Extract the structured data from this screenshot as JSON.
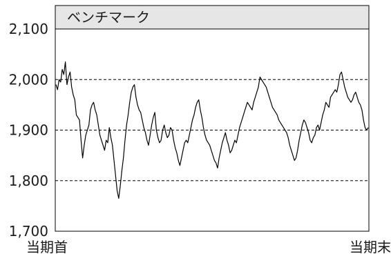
{
  "chart_data": {
    "type": "line",
    "title": "ベンチマーク",
    "xlabel": "",
    "ylabel": "",
    "x_tick_labels": [
      "当期首",
      "当期末"
    ],
    "y_ticks": [
      1700,
      1800,
      1900,
      2000,
      2100
    ],
    "y_tick_labels": [
      "1,700",
      "1,800",
      "1,900",
      "2,000",
      "2,100"
    ],
    "ylim": [
      1700,
      2100
    ],
    "grid": "horizontal dashed at 1,800 / 1,900 / 2,000",
    "legend": "none",
    "colors": {
      "line": "#000000",
      "title_band": "#e6e6e6",
      "grid": "#000000",
      "frame": "#000000"
    },
    "series": [
      {
        "values": [
          1990,
          1980,
          2000,
          1995,
          2020,
          2010,
          2035,
          1990,
          2005,
          2015,
          1985,
          1970,
          1960,
          1930,
          1925,
          1920,
          1880,
          1845,
          1870,
          1890,
          1900,
          1910,
          1940,
          1950,
          1955,
          1940,
          1930,
          1910,
          1890,
          1880,
          1870,
          1860,
          1880,
          1875,
          1905,
          1885,
          1870,
          1840,
          1810,
          1780,
          1765,
          1790,
          1820,
          1845,
          1880,
          1910,
          1930,
          1955,
          1975,
          1985,
          1990,
          1965,
          1950,
          1940,
          1935,
          1920,
          1905,
          1895,
          1880,
          1870,
          1890,
          1910,
          1925,
          1935,
          1900,
          1885,
          1875,
          1880,
          1900,
          1910,
          1895,
          1885,
          1890,
          1905,
          1900,
          1880,
          1865,
          1855,
          1840,
          1830,
          1845,
          1860,
          1875,
          1880,
          1875,
          1890,
          1905,
          1920,
          1930,
          1945,
          1955,
          1960,
          1940,
          1925,
          1905,
          1890,
          1880,
          1875,
          1870,
          1860,
          1850,
          1840,
          1835,
          1825,
          1845,
          1860,
          1875,
          1885,
          1895,
          1880,
          1870,
          1855,
          1860,
          1870,
          1880,
          1875,
          1890,
          1905,
          1915,
          1925,
          1935,
          1945,
          1955,
          1950,
          1945,
          1940,
          1955,
          1965,
          1975,
          1985,
          2005,
          2000,
          1995,
          1990,
          1985,
          1975,
          1965,
          1955,
          1945,
          1940,
          1935,
          1930,
          1920,
          1915,
          1910,
          1905,
          1900,
          1895,
          1885,
          1870,
          1860,
          1850,
          1840,
          1845,
          1860,
          1880,
          1895,
          1910,
          1920,
          1915,
          1905,
          1895,
          1880,
          1875,
          1885,
          1890,
          1905,
          1910,
          1900,
          1915,
          1930,
          1940,
          1955,
          1950,
          1945,
          1965,
          1970,
          1975,
          1980,
          1975,
          1990,
          2010,
          2015,
          2000,
          1985,
          1975,
          1965,
          1960,
          1955,
          1960,
          1970,
          1975,
          1965,
          1955,
          1950,
          1940,
          1920,
          1905,
          1900,
          1905
        ]
      }
    ]
  }
}
